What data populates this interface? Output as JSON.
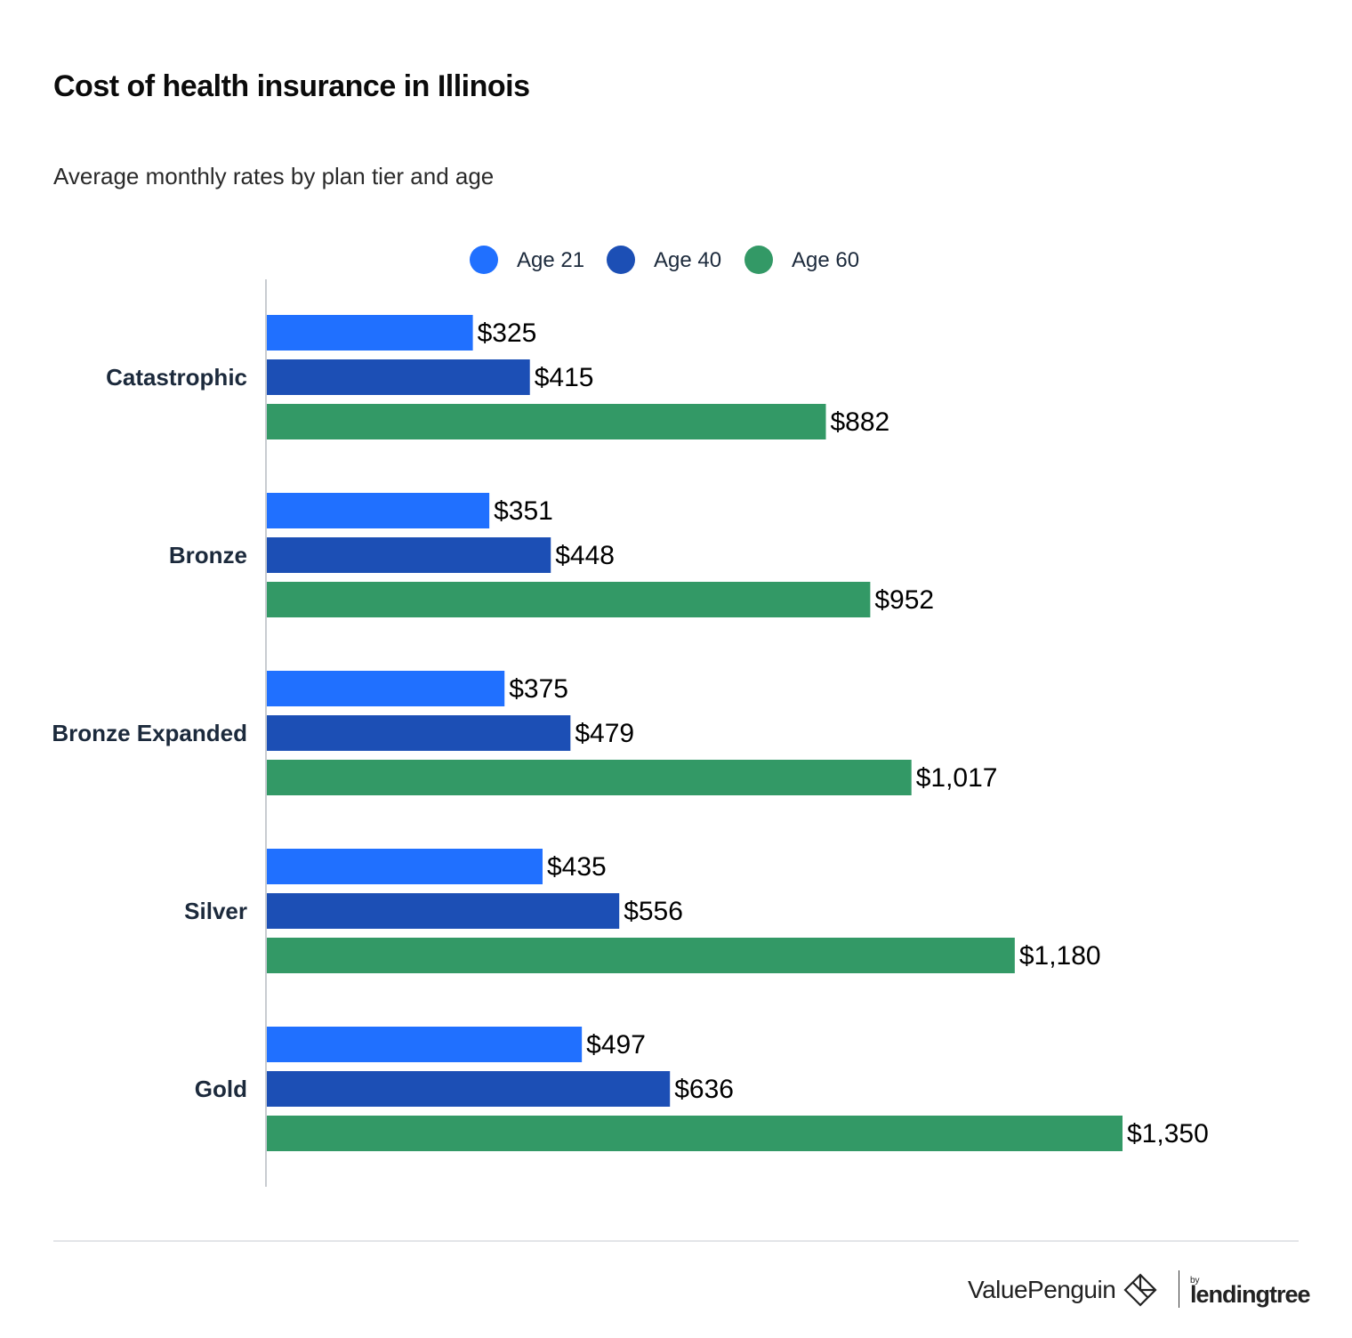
{
  "chart_data": {
    "type": "bar",
    "orientation": "horizontal",
    "title": "Cost of health insurance in Illinois",
    "subtitle": "Average monthly rates by plan tier and age",
    "categories": [
      "Catastrophic",
      "Bronze",
      "Bronze Expanded",
      "Silver",
      "Gold"
    ],
    "series": [
      {
        "name": "Age 21",
        "color": "#2070ff",
        "values": [
          325,
          351,
          375,
          435,
          497
        ],
        "labels": [
          "$325",
          "$351",
          "$375",
          "$435",
          "$497"
        ]
      },
      {
        "name": "Age 40",
        "color": "#1c4fb5",
        "values": [
          415,
          448,
          479,
          556,
          636
        ],
        "labels": [
          "$415",
          "$448",
          "$479",
          "$556",
          "$636"
        ]
      },
      {
        "name": "Age 60",
        "color": "#339966",
        "values": [
          882,
          952,
          1017,
          1180,
          1350
        ],
        "labels": [
          "$882",
          "$952",
          "$1,017",
          "$1,180",
          "$1,350"
        ]
      }
    ],
    "xlim": [
      0,
      1350
    ],
    "legend_position": "top-center",
    "grid": false
  },
  "brand": {
    "primary": "ValuePenguin",
    "by": "by",
    "partner": "lendingtree"
  }
}
